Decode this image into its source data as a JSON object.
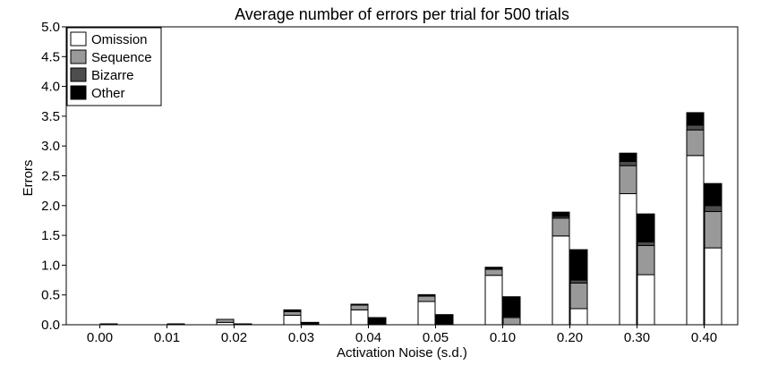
{
  "chart_data": {
    "type": "bar",
    "title": "Average number of errors per trial for 500 trials",
    "xlabel": "Activation Noise (s.d.)",
    "ylabel": "Errors",
    "ylim": [
      0,
      5
    ],
    "yticks": [
      "0.0",
      "0.5",
      "1.0",
      "1.5",
      "2.0",
      "2.5",
      "3.0",
      "3.5",
      "4.0",
      "4.5",
      "5.0"
    ],
    "categories": [
      "0.00",
      "0.01",
      "0.02",
      "0.03",
      "0.04",
      "0.05",
      "0.10",
      "0.20",
      "0.30",
      "0.40"
    ],
    "legend_position": "top-left",
    "grid": false,
    "stack_order": [
      "Omission",
      "Sequence",
      "Bizarre",
      "Other"
    ],
    "colors": {
      "Omission": "#ffffff",
      "Sequence": "#999999",
      "Bizarre": "#4d4d4d",
      "Other": "#000000"
    },
    "groups": [
      {
        "name": "left",
        "values": {
          "Omission": [
            0.0,
            0.0,
            0.04,
            0.16,
            0.25,
            0.39,
            0.83,
            1.49,
            2.2,
            2.84
          ],
          "Sequence": [
            0.0,
            0.0,
            0.05,
            0.06,
            0.08,
            0.09,
            0.1,
            0.3,
            0.47,
            0.43
          ],
          "Bizarre": [
            0.0,
            0.0,
            0.0,
            0.01,
            0.0,
            0.01,
            0.02,
            0.03,
            0.07,
            0.08
          ],
          "Other": [
            0.0,
            0.0,
            0.0,
            0.02,
            0.01,
            0.01,
            0.01,
            0.07,
            0.14,
            0.21
          ]
        }
      },
      {
        "name": "right",
        "values": {
          "Omission": [
            0.0,
            0.0,
            0.0,
            0.0,
            0.0,
            0.0,
            0.0,
            0.27,
            0.84,
            1.29
          ],
          "Sequence": [
            0.0,
            0.0,
            0.0,
            0.0,
            0.0,
            0.0,
            0.12,
            0.43,
            0.49,
            0.61
          ],
          "Bizarre": [
            0.0,
            0.0,
            0.0,
            0.0,
            0.0,
            0.01,
            0.02,
            0.05,
            0.06,
            0.1
          ],
          "Other": [
            0.01,
            0.01,
            0.01,
            0.04,
            0.12,
            0.16,
            0.33,
            0.51,
            0.47,
            0.37
          ]
        }
      }
    ]
  }
}
